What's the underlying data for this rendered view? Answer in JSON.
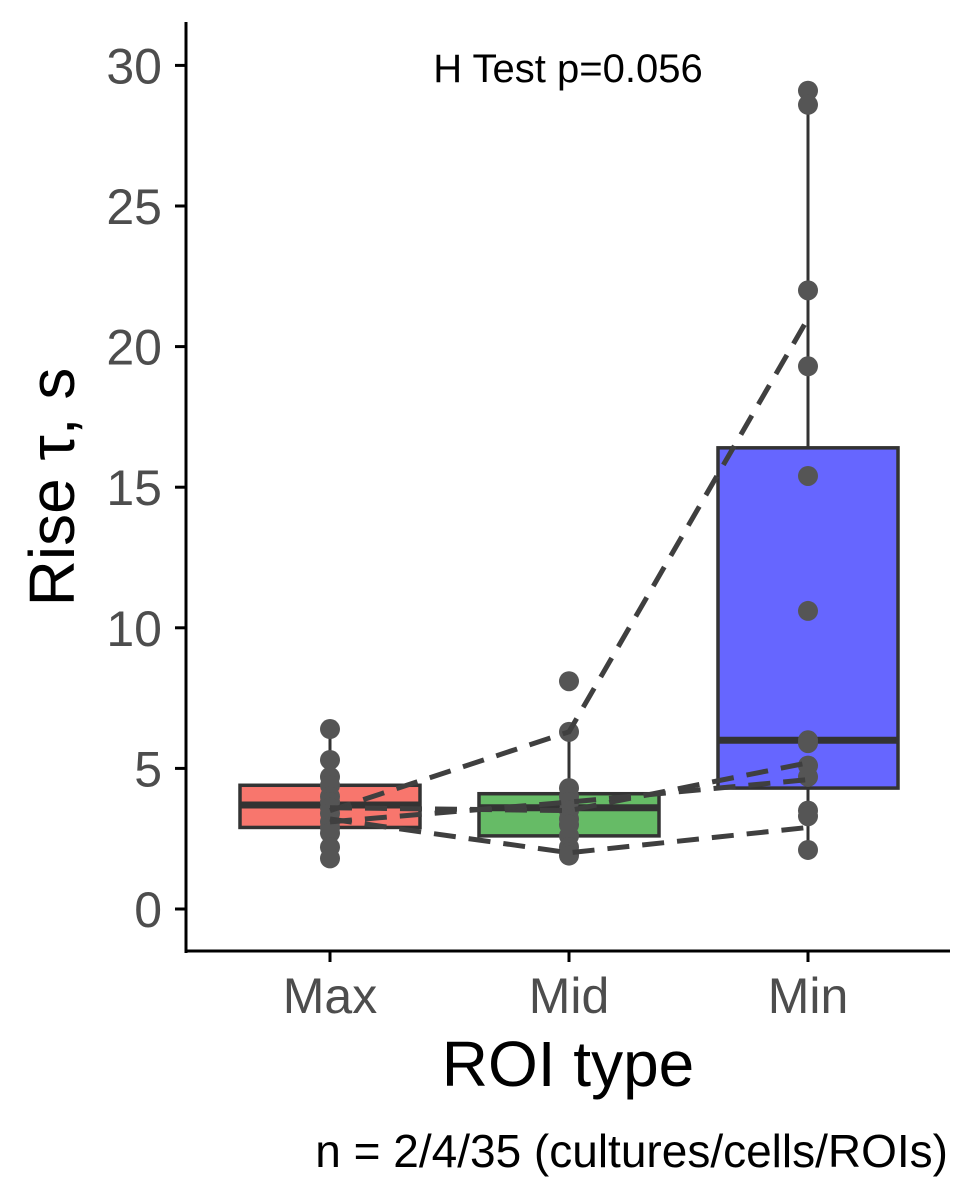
{
  "chart_data": {
    "type": "box",
    "title": "",
    "xlabel": "ROI type",
    "ylabel": "Rise τ, s",
    "caption": "n = 2/4/35 (cultures/cells/ROIs)",
    "annotation": "H Test p=0.056",
    "ylim": [
      -1.5,
      31.5
    ],
    "yticks": [
      0,
      5,
      10,
      15,
      20,
      25,
      30
    ],
    "grid": false,
    "legend": "none",
    "categories": [
      "Max",
      "Mid",
      "Min"
    ],
    "boxes": [
      {
        "category": "Max",
        "fill": "#f8766d",
        "q1": 2.9,
        "median": 3.7,
        "q3": 4.4,
        "whisker_low": 1.8,
        "whisker_high": 6.4,
        "points": [
          6.4,
          5.3,
          4.7,
          4.4,
          4.0,
          3.8,
          3.6,
          3.4,
          3.1,
          2.9,
          2.7,
          2.2,
          1.8
        ]
      },
      {
        "category": "Mid",
        "fill": "#66bb66",
        "q1": 2.6,
        "median": 3.6,
        "q3": 4.1,
        "whisker_low": 1.9,
        "whisker_high": 6.3,
        "points": [
          8.1,
          6.3,
          4.3,
          4.0,
          3.8,
          3.5,
          3.2,
          3.0,
          2.6,
          2.2,
          2.0,
          1.9
        ]
      },
      {
        "category": "Min",
        "fill": "#6666ff",
        "q1": 4.3,
        "median": 6.0,
        "q3": 16.4,
        "whisker_low": 2.1,
        "whisker_high": 29.1,
        "points": [
          29.1,
          28.6,
          22.0,
          19.3,
          15.4,
          10.6,
          6.0,
          5.9,
          5.1,
          4.7,
          3.5,
          3.3,
          2.1
        ]
      }
    ],
    "connecting_lines": [
      {
        "values": [
          3.5,
          6.3,
          21.0
        ]
      },
      {
        "values": [
          3.2,
          2.0,
          2.9
        ]
      },
      {
        "values": [
          3.6,
          3.5,
          5.2
        ]
      },
      {
        "values": [
          3.1,
          3.8,
          4.6
        ]
      }
    ],
    "colors": {
      "box_stroke": "#333333",
      "points": "#555555",
      "lines": "#3f3f3f",
      "axis": "#000000",
      "tick_text": "#4d4d4d"
    }
  }
}
